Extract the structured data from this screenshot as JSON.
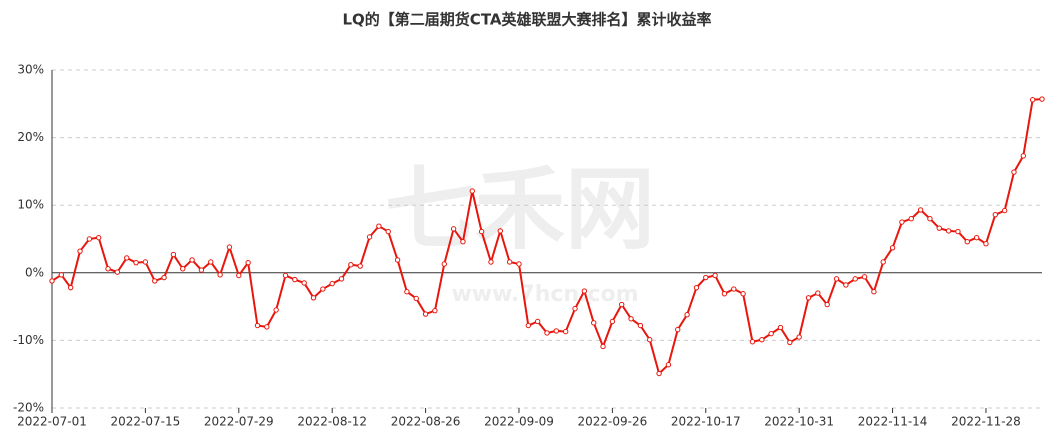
{
  "chart_data": {
    "type": "line",
    "title": "LQ的【第二届期货CTA英雄联盟大赛排名】累计收益率",
    "watermark": [
      "七禾网",
      "www.7hcn.com"
    ],
    "categories": [
      "2022-07-01",
      null,
      null,
      null,
      null,
      null,
      null,
      null,
      null,
      null,
      "2022-07-15",
      null,
      null,
      null,
      null,
      null,
      null,
      null,
      null,
      null,
      "2022-07-29",
      null,
      null,
      null,
      null,
      null,
      null,
      null,
      null,
      null,
      "2022-08-12",
      null,
      null,
      null,
      null,
      null,
      null,
      null,
      null,
      null,
      "2022-08-26",
      null,
      null,
      null,
      null,
      null,
      null,
      null,
      null,
      null,
      "2022-09-09",
      null,
      null,
      null,
      null,
      null,
      null,
      null,
      null,
      null,
      "2022-09-26",
      null,
      null,
      null,
      null,
      null,
      null,
      null,
      null,
      null,
      "2022-10-17",
      null,
      null,
      null,
      null,
      null,
      null,
      null,
      null,
      null,
      "2022-10-31",
      null,
      null,
      null,
      null,
      null,
      null,
      null,
      null,
      null,
      "2022-11-14",
      null,
      null,
      null,
      null,
      null,
      null,
      null,
      null,
      null,
      "2022-11-28",
      null,
      null,
      null,
      null,
      null,
      null
    ],
    "series": [
      {
        "color": "#e8160c",
        "values": [
          -1.2,
          -0.3,
          -2.2,
          3.2,
          5.0,
          5.2,
          0.6,
          0.1,
          2.2,
          1.5,
          1.6,
          -1.2,
          -0.7,
          2.7,
          0.6,
          1.9,
          0.4,
          1.6,
          -0.3,
          3.8,
          -0.4,
          1.5,
          -7.8,
          -8.0,
          -5.5,
          -0.4,
          -1.0,
          -1.5,
          -3.7,
          -2.4,
          -1.6,
          -0.9,
          1.2,
          1.0,
          5.3,
          6.9,
          6.1,
          1.9,
          -2.8,
          -3.8,
          -6.1,
          -5.6,
          1.3,
          6.5,
          4.6,
          12.1,
          6.1,
          1.6,
          6.2,
          1.6,
          1.3,
          -7.8,
          -7.2,
          -8.9,
          -8.6,
          -8.7,
          -5.3,
          -2.7,
          -7.4,
          -10.9,
          -7.2,
          -4.7,
          -6.8,
          -7.8,
          -9.9,
          -14.9,
          -13.6,
          -8.4,
          -6.2,
          -2.2,
          -0.7,
          -0.4,
          -3.1,
          -2.4,
          -3.1,
          -10.2,
          -9.9,
          -9.0,
          -8.1,
          -10.3,
          -9.5,
          -3.7,
          -3.0,
          -4.7,
          -0.9,
          -1.8,
          -0.9,
          -0.6,
          -2.8,
          1.6,
          3.7,
          7.5,
          8.0,
          9.3,
          8.0,
          6.6,
          6.2,
          6.1,
          4.6,
          5.2,
          4.3,
          8.6,
          9.2,
          14.9,
          17.3,
          25.6,
          25.7
        ]
      }
    ],
    "ylim": [
      -20,
      30
    ],
    "yticks": [
      {
        "value": -20,
        "label": "-20%"
      },
      {
        "value": -10,
        "label": "-10%"
      },
      {
        "value": 0,
        "label": "0%"
      },
      {
        "value": 10,
        "label": "10%"
      },
      {
        "value": 20,
        "label": "20%"
      },
      {
        "value": 30,
        "label": "30%"
      }
    ],
    "grid": true
  }
}
